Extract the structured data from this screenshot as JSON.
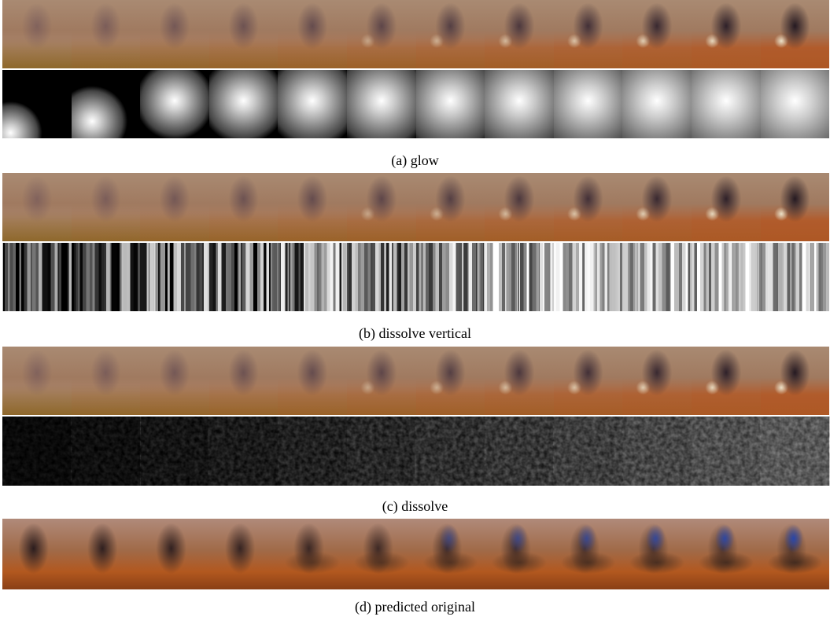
{
  "panels": [
    {
      "caption": "(a) glow"
    },
    {
      "caption": "(b) dissolve vertical"
    },
    {
      "caption": "(c) dissolve"
    },
    {
      "caption": "(d) predicted original"
    }
  ]
}
